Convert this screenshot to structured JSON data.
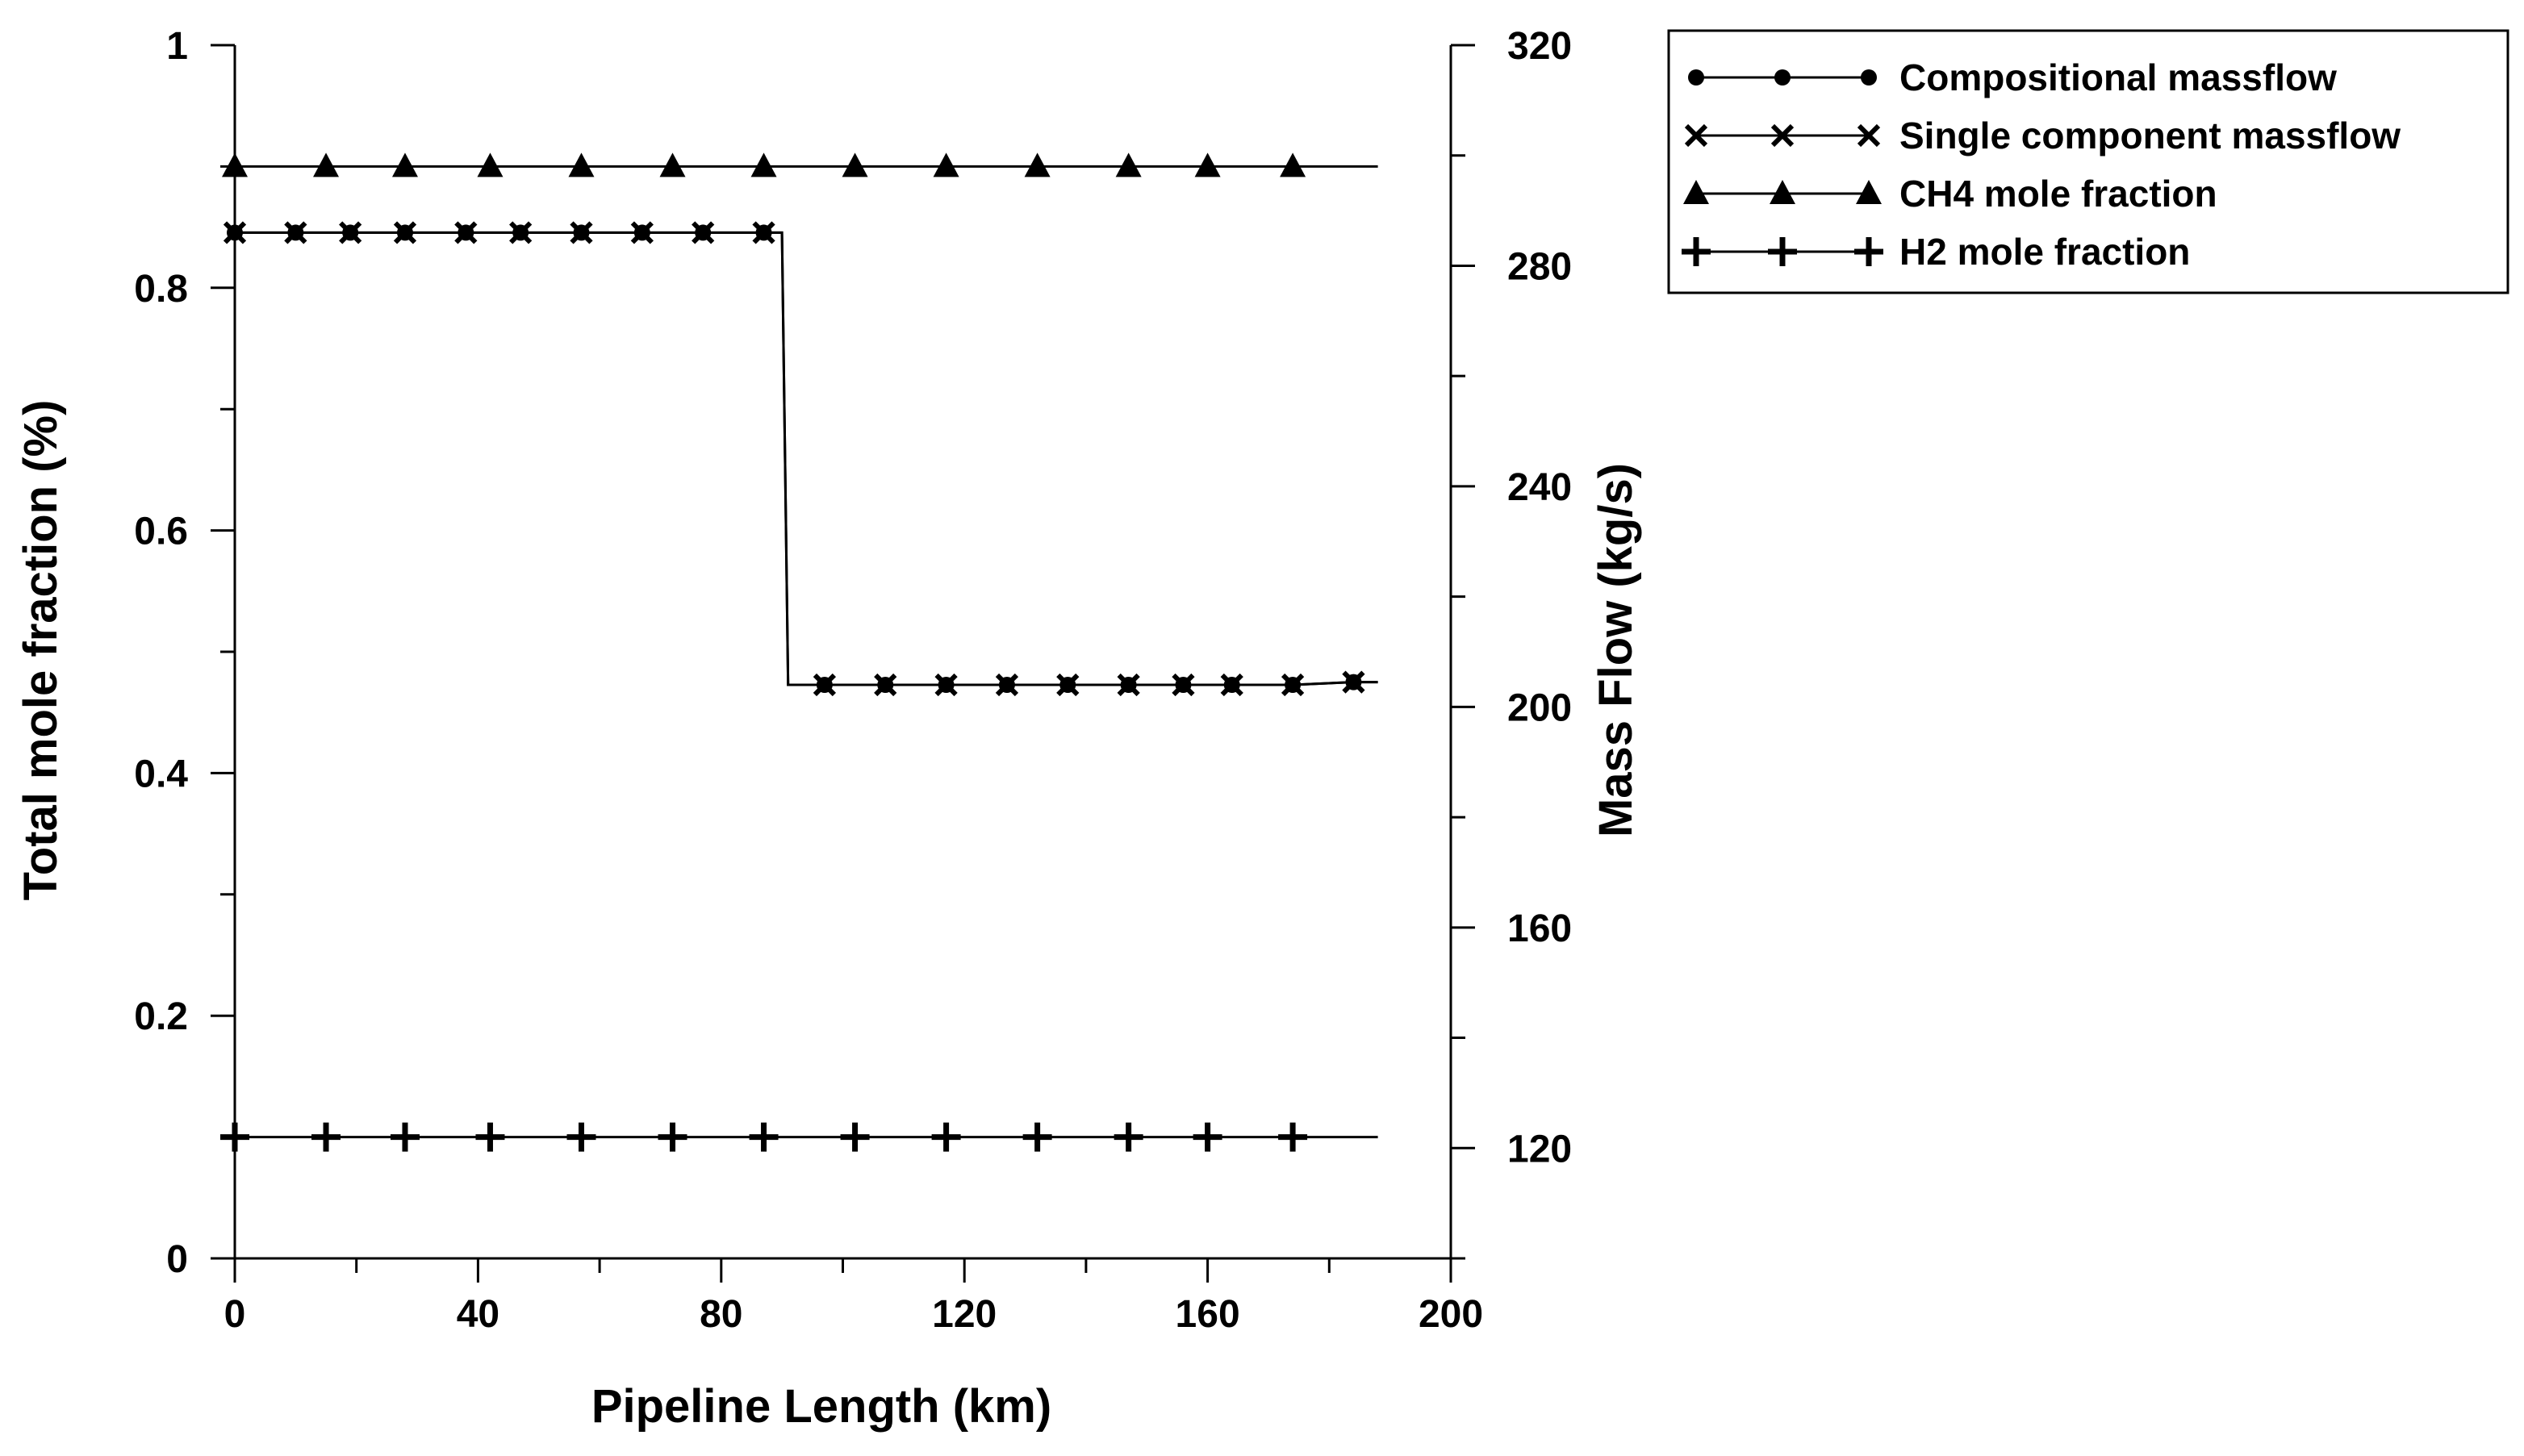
{
  "chart_data": {
    "type": "line",
    "xlabel": "Pipeline Length (km)",
    "ylabel": "Total mole fraction (%)",
    "y2label": "Mass Flow (kg/s)",
    "xlim": [
      0,
      200
    ],
    "ylim": [
      0,
      1
    ],
    "y2lim": [
      100,
      320
    ],
    "x_ticks": [
      "0",
      "40",
      "80",
      "120",
      "160",
      "200"
    ],
    "y_ticks": [
      "0",
      "0.2",
      "0.4",
      "0.6",
      "0.8",
      "1"
    ],
    "y2_ticks": [
      "120",
      "160",
      "200",
      "240",
      "280",
      "320"
    ],
    "x_minor_step": 20,
    "y_minor_step": 0.1,
    "y2_minor_step": 20,
    "grid": false,
    "legend_position": "top-right, outside plot",
    "series": [
      {
        "name": "Compositional massflow",
        "marker": "circle",
        "axis": "right",
        "x": [
          0,
          10,
          19,
          28,
          38,
          47,
          57,
          67,
          77,
          87,
          90,
          91,
          97,
          107,
          117,
          127,
          137,
          147,
          156,
          164,
          174,
          184,
          188
        ],
        "y": [
          286,
          286,
          286,
          286,
          286,
          286,
          286,
          286,
          286,
          286,
          286,
          204,
          204,
          204,
          204,
          204,
          204,
          204,
          204,
          204,
          204,
          204.5,
          204.5
        ],
        "marker_x": [
          0,
          10,
          19,
          28,
          38,
          47,
          57,
          67,
          77,
          87,
          97,
          107,
          117,
          127,
          137,
          147,
          156,
          164,
          174,
          184
        ]
      },
      {
        "name": "Single component massflow",
        "marker": "x",
        "axis": "right",
        "x": [
          0,
          10,
          19,
          28,
          38,
          47,
          57,
          67,
          77,
          87,
          90,
          91,
          97,
          107,
          117,
          127,
          137,
          147,
          156,
          164,
          174,
          184,
          188
        ],
        "y": [
          286,
          286,
          286,
          286,
          286,
          286,
          286,
          286,
          286,
          286,
          286,
          204,
          204,
          204,
          204,
          204,
          204,
          204,
          204,
          204,
          204,
          204.5,
          204.5
        ],
        "marker_x": [
          0,
          10,
          19,
          28,
          38,
          47,
          57,
          67,
          77,
          87,
          97,
          107,
          117,
          127,
          137,
          147,
          156,
          164,
          174,
          184
        ]
      },
      {
        "name": "CH4 mole fraction",
        "marker": "triangle",
        "axis": "left",
        "x": [
          0,
          15,
          28,
          42,
          57,
          72,
          87,
          102,
          117,
          132,
          147,
          160,
          174,
          188
        ],
        "y": [
          0.9,
          0.9,
          0.9,
          0.9,
          0.9,
          0.9,
          0.9,
          0.9,
          0.9,
          0.9,
          0.9,
          0.9,
          0.9,
          0.9
        ],
        "marker_x": [
          0,
          15,
          28,
          42,
          57,
          72,
          87,
          102,
          117,
          132,
          147,
          160,
          174
        ]
      },
      {
        "name": "H2 mole fraction",
        "marker": "plus",
        "axis": "left",
        "x": [
          0,
          15,
          28,
          42,
          57,
          72,
          87,
          102,
          117,
          132,
          147,
          160,
          174,
          188
        ],
        "y": [
          0.1,
          0.1,
          0.1,
          0.1,
          0.1,
          0.1,
          0.1,
          0.1,
          0.1,
          0.1,
          0.1,
          0.1,
          0.1,
          0.1
        ],
        "marker_x": [
          0,
          15,
          28,
          42,
          57,
          72,
          87,
          102,
          117,
          132,
          147,
          160,
          174
        ]
      }
    ]
  }
}
